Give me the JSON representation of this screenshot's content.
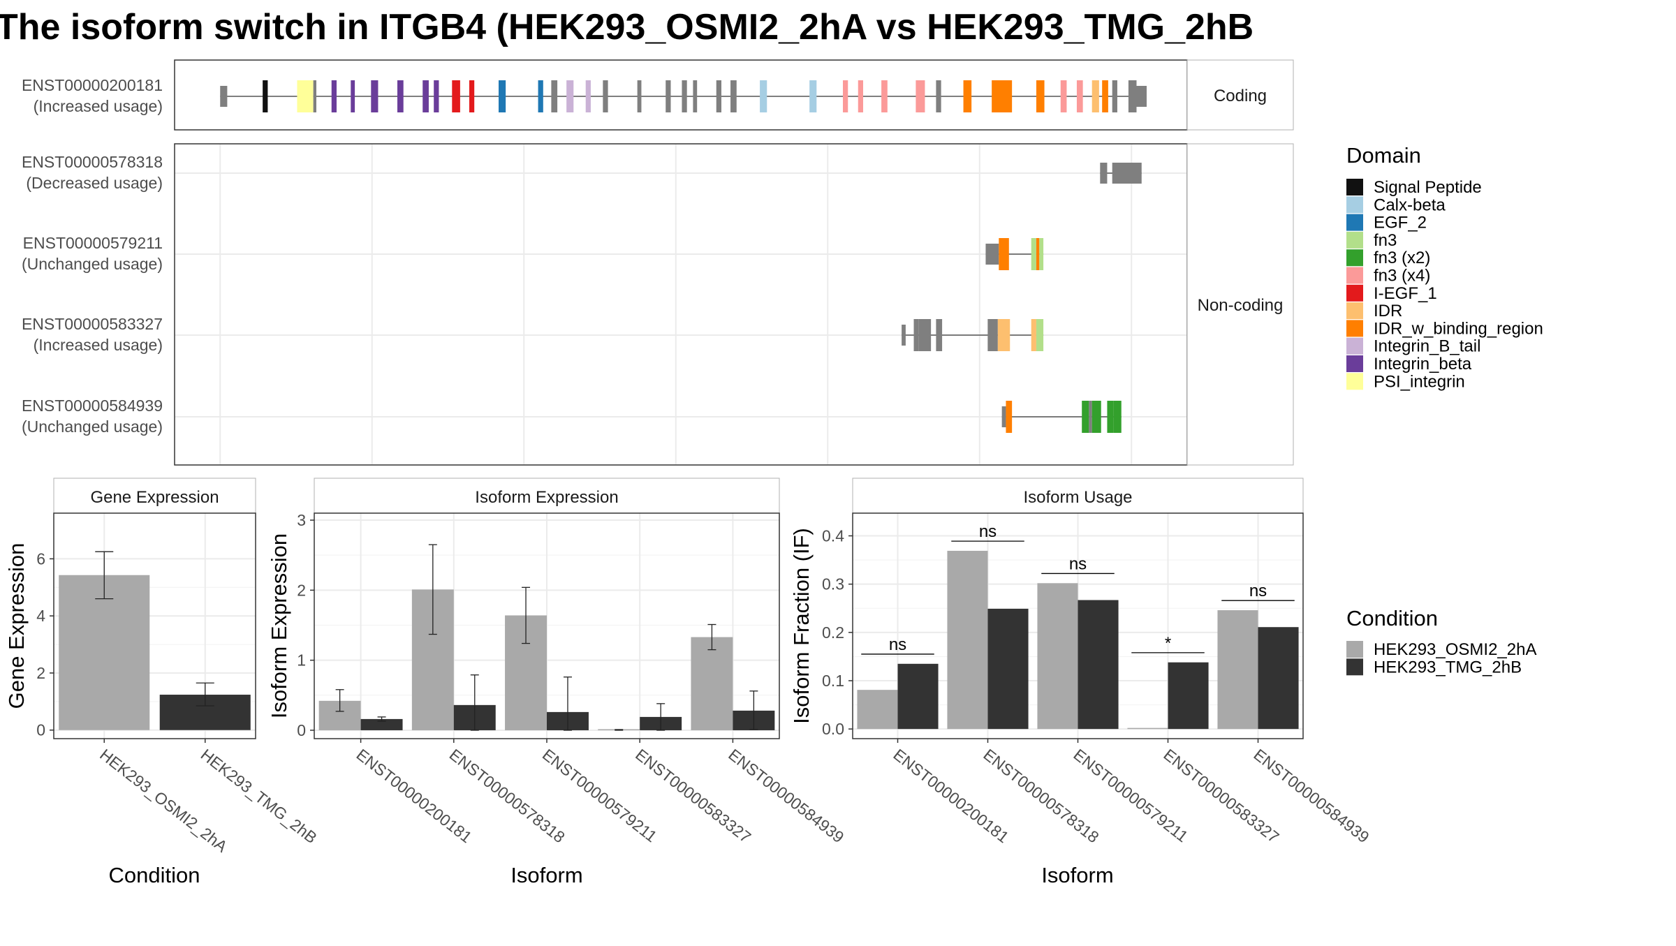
{
  "title": "The isoform switch in ITGB4 (HEK293_OSMI2_2hA vs HEK293_TMG_2hB",
  "colors": {
    "panel_border": "#333333",
    "grid": "#ebebeb",
    "strip_fill": "#ffffff",
    "exon": "#7f7f7f",
    "intron": "#555555",
    "condition_a": "#a9a9a9",
    "condition_b": "#333333"
  },
  "gene_structure": {
    "coding_label": "Coding",
    "noncoding_label": "Non-coding",
    "transcripts": [
      {
        "id": "ENST00000200181",
        "usage": "(Increased usage)",
        "group": "coding",
        "span": [
          0.045,
          0.96
        ],
        "exons": [
          [
            0.045,
            0.052,
            "none"
          ],
          [
            0.087,
            0.092,
            "Signal Peptide"
          ],
          [
            0.121,
            0.137,
            "PSI_integrin"
          ],
          [
            0.137,
            0.14,
            "none"
          ],
          [
            0.155,
            0.16,
            "Integrin_beta"
          ],
          [
            0.174,
            0.178,
            "Integrin_beta"
          ],
          [
            0.194,
            0.201,
            "Integrin_beta"
          ],
          [
            0.22,
            0.226,
            "Integrin_beta"
          ],
          [
            0.245,
            0.251,
            "Integrin_beta"
          ],
          [
            0.256,
            0.261,
            "Integrin_beta"
          ],
          [
            0.274,
            0.282,
            "I-EGF_1"
          ],
          [
            0.291,
            0.296,
            "I-EGF_1"
          ],
          [
            0.32,
            0.327,
            "EGF_2"
          ],
          [
            0.359,
            0.364,
            "EGF_2"
          ],
          [
            0.372,
            0.378,
            "none"
          ],
          [
            0.387,
            0.394,
            "Integrin_B_tail"
          ],
          [
            0.406,
            0.411,
            "Integrin_B_tail"
          ],
          [
            0.423,
            0.428,
            "none"
          ],
          [
            0.457,
            0.461,
            "none"
          ],
          [
            0.485,
            0.49,
            "none"
          ],
          [
            0.501,
            0.506,
            "none"
          ],
          [
            0.512,
            0.516,
            "none"
          ],
          [
            0.535,
            0.54,
            "none"
          ],
          [
            0.549,
            0.555,
            "none"
          ],
          [
            0.578,
            0.585,
            "Calx-beta"
          ],
          [
            0.627,
            0.634,
            "Calx-beta"
          ],
          [
            0.66,
            0.665,
            "fn3 (x4)"
          ],
          [
            0.675,
            0.68,
            "fn3 (x4)"
          ],
          [
            0.698,
            0.704,
            "fn3 (x4)"
          ],
          [
            0.732,
            0.741,
            "fn3 (x4)"
          ],
          [
            0.752,
            0.757,
            "none"
          ],
          [
            0.779,
            0.787,
            "IDR_w_binding_region"
          ],
          [
            0.807,
            0.827,
            "IDR_w_binding_region"
          ],
          [
            0.851,
            0.859,
            "IDR_w_binding_region"
          ],
          [
            0.875,
            0.881,
            "fn3 (x4)"
          ],
          [
            0.891,
            0.897,
            "fn3 (x4)"
          ],
          [
            0.906,
            0.913,
            "IDR"
          ],
          [
            0.916,
            0.922,
            "IDR_w_binding_region"
          ],
          [
            0.926,
            0.931,
            "none"
          ],
          [
            0.942,
            0.95,
            "none"
          ],
          [
            0.95,
            0.96,
            "none"
          ]
        ]
      },
      {
        "id": "ENST00000578318",
        "usage": "(Decreased usage)",
        "group": "noncoding",
        "span": [
          0.914,
          0.955
        ],
        "exons": [
          [
            0.914,
            0.921,
            "none"
          ],
          [
            0.926,
            0.955,
            "none"
          ]
        ]
      },
      {
        "id": "ENST00000579211",
        "usage": "(Unchanged usage)",
        "group": "noncoding",
        "span": [
          0.801,
          0.858
        ],
        "exons": [
          [
            0.801,
            0.814,
            "none"
          ],
          [
            0.814,
            0.824,
            "IDR_w_binding_region"
          ],
          [
            0.846,
            0.851,
            "fn3"
          ],
          [
            0.851,
            0.854,
            "IDR_w_binding_region"
          ],
          [
            0.854,
            0.858,
            "fn3"
          ]
        ]
      },
      {
        "id": "ENST00000583327",
        "usage": "(Increased usage)",
        "group": "noncoding",
        "span": [
          0.718,
          0.858
        ],
        "exons": [
          [
            0.718,
            0.722,
            "none"
          ],
          [
            0.73,
            0.735,
            "none"
          ],
          [
            0.735,
            0.747,
            "none"
          ],
          [
            0.752,
            0.758,
            "none"
          ],
          [
            0.803,
            0.813,
            "none"
          ],
          [
            0.813,
            0.825,
            "IDR"
          ],
          [
            0.846,
            0.851,
            "IDR"
          ],
          [
            0.851,
            0.858,
            "fn3"
          ]
        ]
      },
      {
        "id": "ENST00000584939",
        "usage": "(Unchanged usage)",
        "group": "noncoding",
        "span": [
          0.817,
          0.935
        ],
        "exons": [
          [
            0.817,
            0.821,
            "none"
          ],
          [
            0.821,
            0.827,
            "IDR_w_binding_region"
          ],
          [
            0.896,
            0.903,
            "fn3 (x2)"
          ],
          [
            0.903,
            0.906,
            "none"
          ],
          [
            0.906,
            0.915,
            "fn3 (x2)"
          ],
          [
            0.921,
            0.927,
            "fn3 (x2)"
          ],
          [
            0.927,
            0.935,
            "fn3 (x2)"
          ]
        ]
      }
    ]
  },
  "domain_legend": {
    "title": "Domain",
    "items": [
      {
        "label": "Signal Peptide",
        "color": "#111111"
      },
      {
        "label": "Calx-beta",
        "color": "#a6cee3"
      },
      {
        "label": "EGF_2",
        "color": "#1f78b4"
      },
      {
        "label": "fn3",
        "color": "#b2df8a"
      },
      {
        "label": "fn3 (x2)",
        "color": "#33a02c"
      },
      {
        "label": "fn3 (x4)",
        "color": "#fb9a99"
      },
      {
        "label": "I-EGF_1",
        "color": "#e31a1c"
      },
      {
        "label": "IDR",
        "color": "#fdbf6f"
      },
      {
        "label": "IDR_w_binding_region",
        "color": "#ff7f00"
      },
      {
        "label": "Integrin_B_tail",
        "color": "#cab2d6"
      },
      {
        "label": "Integrin_beta",
        "color": "#6a3d9a"
      },
      {
        "label": "PSI_integrin",
        "color": "#ffff99"
      }
    ]
  },
  "condition_legend": {
    "title": "Condition",
    "items": [
      {
        "label": "HEK293_OSMI2_2hA",
        "color": "#a9a9a9"
      },
      {
        "label": "HEK293_TMG_2hB",
        "color": "#333333"
      }
    ]
  },
  "chart_data": [
    {
      "type": "bar",
      "strip": "Gene Expression",
      "xlabel": "Condition",
      "ylabel": "Gene Expression",
      "ylim": [
        -0.3,
        7.6
      ],
      "yticks": [
        0,
        2,
        4,
        6
      ],
      "grid": true,
      "categories": [
        "HEK293_OSMI2_2hA",
        "HEK293_TMG_2hB"
      ],
      "values": [
        5.43,
        1.24
      ],
      "errors": [
        [
          4.6,
          6.25
        ],
        [
          0.85,
          1.65
        ]
      ]
    },
    {
      "type": "bar",
      "strip": "Isoform Expression",
      "xlabel": "Isoform",
      "ylabel": "Isoform Expression",
      "ylim": [
        -0.12,
        3.1
      ],
      "yticks": [
        0,
        1,
        2,
        3
      ],
      "grid": true,
      "categories": [
        "ENST00000200181",
        "ENST00000578318",
        "ENST00000579211",
        "ENST00000583327",
        "ENST00000584939"
      ],
      "series": [
        {
          "name": "HEK293_OSMI2_2hA",
          "values": [
            0.42,
            2.01,
            1.64,
            0.01,
            1.33
          ],
          "errors": [
            [
              0.27,
              0.58
            ],
            [
              1.37,
              2.65
            ],
            [
              1.24,
              2.04
            ],
            [
              0.0,
              0.01
            ],
            [
              1.15,
              1.51
            ]
          ]
        },
        {
          "name": "HEK293_TMG_2hB",
          "values": [
            0.16,
            0.36,
            0.26,
            0.19,
            0.28
          ],
          "errors": [
            [
              0.13,
              0.19
            ],
            [
              0.0,
              0.79
            ],
            [
              0.0,
              0.76
            ],
            [
              0.0,
              0.38
            ],
            [
              0.01,
              0.56
            ]
          ]
        }
      ]
    },
    {
      "type": "bar",
      "strip": "Isoform Usage",
      "xlabel": "Isoform",
      "ylabel": "Isoform Fraction (IF)",
      "ylim": [
        -0.02,
        0.447
      ],
      "yticks": [
        0.0,
        0.1,
        0.2,
        0.3,
        0.4
      ],
      "ytick_labels": [
        "0.0",
        "0.1",
        "0.2",
        "0.3",
        "0.4"
      ],
      "grid": true,
      "categories": [
        "ENST00000200181",
        "ENST00000578318",
        "ENST00000579211",
        "ENST00000583327",
        "ENST00000584939"
      ],
      "series": [
        {
          "name": "HEK293_OSMI2_2hA",
          "values": [
            0.081,
            0.369,
            0.302,
            0.0,
            0.246
          ]
        },
        {
          "name": "HEK293_TMG_2hB",
          "values": [
            0.135,
            0.249,
            0.267,
            0.138,
            0.211
          ]
        }
      ],
      "annotations": [
        {
          "text": "ns",
          "y": 0.155
        },
        {
          "text": "ns",
          "y": 0.389
        },
        {
          "text": "ns",
          "y": 0.322
        },
        {
          "text": "*",
          "y": 0.158
        },
        {
          "text": "ns",
          "y": 0.266
        }
      ]
    }
  ]
}
